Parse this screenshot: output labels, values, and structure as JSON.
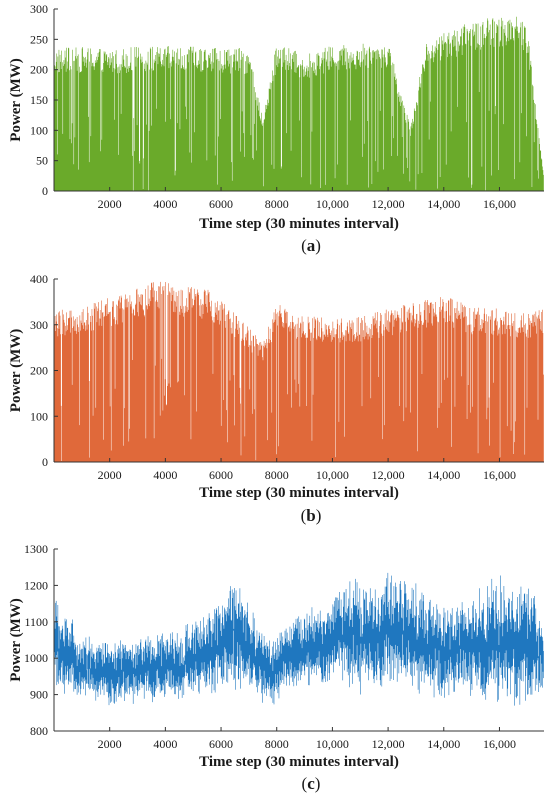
{
  "panels": [
    {
      "caption_letter": "a",
      "color": "#6aaa2a",
      "chart_data": {
        "type": "line",
        "xlabel": "Time step (30 minutes interval)",
        "ylabel": "Power (MW)",
        "xlim": [
          0,
          17600
        ],
        "ylim": [
          0,
          300
        ],
        "x_ticks": [
          2000,
          4000,
          6000,
          8000,
          10000,
          12000,
          14000,
          16000
        ],
        "x_tick_labels": [
          "2000",
          "4000",
          "6000",
          "8000",
          "10,000",
          "12,000",
          "14,000",
          "16,000"
        ],
        "y_ticks": [
          0,
          50,
          100,
          150,
          200,
          250,
          300
        ],
        "y_tick_labels": [
          "0",
          "50",
          "100",
          "150",
          "200",
          "250",
          "300"
        ],
        "series": [
          {
            "x": [
              0,
              1000,
              2000,
              3000,
              4000,
              5000,
              6000,
              7000,
              7500,
              8000,
              9000,
              10000,
              11000,
              12000,
              12800,
              13400,
              14000,
              15000,
              16000,
              16600,
              17000,
              17600
            ],
            "min": [
              0,
              0,
              0,
              0,
              0,
              0,
              0,
              0,
              0,
              0,
              0,
              0,
              0,
              0,
              0,
              0,
              0,
              0,
              0,
              0,
              0,
              0
            ],
            "max": [
              235,
              238,
              236,
              238,
              239,
              238,
              237,
              235,
              120,
              245,
              225,
              240,
              245,
              247,
              110,
              250,
              260,
              280,
              288,
              299,
              272,
              20
            ]
          }
        ]
      }
    },
    {
      "caption_letter": "b",
      "color": "#e0693a",
      "chart_data": {
        "type": "line",
        "xlabel": "Time step (30 minutes interval)",
        "ylabel": "Power (MW)",
        "xlim": [
          0,
          17600
        ],
        "ylim": [
          0,
          400
        ],
        "x_ticks": [
          2000,
          4000,
          6000,
          8000,
          10000,
          12000,
          14000,
          16000
        ],
        "x_tick_labels": [
          "2000",
          "4000",
          "6000",
          "8000",
          "10,000",
          "12,000",
          "14,000",
          "16,000"
        ],
        "y_ticks": [
          0,
          100,
          200,
          300,
          400
        ],
        "y_tick_labels": [
          "0",
          "100",
          "200",
          "300",
          "400"
        ],
        "series": [
          {
            "x": [
              0,
              1000,
              2000,
              3000,
              3700,
              4500,
              5500,
              6500,
              7500,
              8000,
              9000,
              10000,
              11000,
              12000,
              13000,
              14000,
              15000,
              16000,
              17000,
              17600
            ],
            "min": [
              0,
              0,
              0,
              0,
              0,
              0,
              0,
              0,
              0,
              0,
              0,
              0,
              0,
              0,
              0,
              0,
              0,
              0,
              0,
              0
            ],
            "max": [
              330,
              340,
              360,
              380,
              400,
              385,
              380,
              330,
              260,
              350,
              320,
              315,
              320,
              335,
              350,
              365,
              340,
              335,
              330,
              338
            ]
          }
        ]
      }
    },
    {
      "caption_letter": "c",
      "color": "#1f77bf",
      "chart_data": {
        "type": "line",
        "xlabel": "Time step (30 minutes interval)",
        "ylabel": "Power (MW)",
        "xlim": [
          0,
          17600
        ],
        "ylim": [
          800,
          1300
        ],
        "x_ticks": [
          2000,
          4000,
          6000,
          8000,
          10000,
          12000,
          14000,
          16000
        ],
        "x_tick_labels": [
          "2000",
          "4000",
          "6000",
          "8000",
          "10,000",
          "12,000",
          "14,000",
          "16,000"
        ],
        "y_ticks": [
          800,
          900,
          1000,
          1100,
          1200,
          1300
        ],
        "y_tick_labels": [
          "800",
          "900",
          "1000",
          "1100",
          "1200",
          "1300"
        ],
        "series": [
          {
            "x": [
              0,
              1000,
              2000,
              3000,
              4000,
              5000,
              6000,
              6400,
              7000,
              7800,
              8500,
              9500,
              10500,
              11500,
              12300,
              13000,
              14000,
              15000,
              16000,
              17000,
              17600
            ],
            "min": [
              920,
              890,
              880,
              885,
              890,
              900,
              910,
              920,
              930,
              870,
              920,
              930,
              930,
              920,
              950,
              920,
              900,
              910,
              900,
              880,
              900
            ],
            "max": [
              1150,
              1050,
              1030,
              1050,
              1060,
              1080,
              1150,
              1220,
              1130,
              1050,
              1100,
              1130,
              1200,
              1190,
              1220,
              1180,
              1120,
              1150,
              1200,
              1190,
              1100
            ]
          }
        ]
      }
    }
  ]
}
